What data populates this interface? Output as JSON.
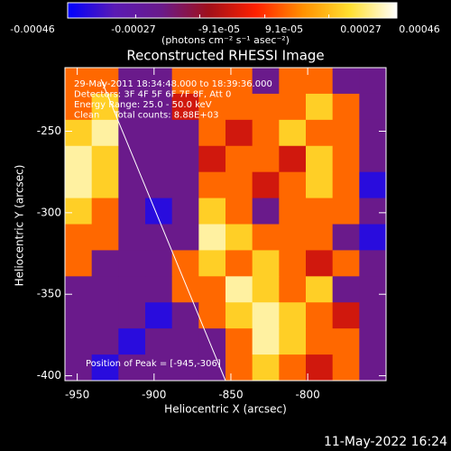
{
  "chart_data": {
    "type": "heatmap",
    "title": "Reconstructed RHESSI Image",
    "x_label": "Heliocentric X (arcsec)",
    "y_label": "Heliocentric Y (arcsec)",
    "xlim": [
      -958,
      -749
    ],
    "xticks": [
      -950,
      -900,
      -850,
      -800
    ],
    "ylim": [
      -403,
      -211
    ],
    "yticks": [
      -400,
      -350,
      -300,
      -250
    ],
    "colorbar": {
      "zlim": [
        -0.00046,
        0.00046
      ],
      "ticks": [
        -0.00046,
        -0.00027,
        {
          "value": -9.1e-05,
          "label": "-9.1e-05"
        },
        {
          "value": 9.1e-05,
          "label": "9.1e-05"
        },
        0.00027,
        0.00046
      ],
      "unit": "(photons cm⁻² s⁻¹ asec⁻²)",
      "colorscale": [
        "#0000ff",
        "#5a1ab4",
        "#6a1a8a",
        "#a0101a",
        "#ff2000",
        "#ff9000",
        "#ffe030",
        "#ffffff"
      ]
    },
    "annotations": [
      "29-May-2011 18:34:48.000 to 18:39:36.000",
      "Detectors: 3F 4F 5F 6F 7F 8F, Att 0",
      "Energy Range: 25.0 - 50.0 keV",
      "Clean     Total counts: 8.88E+03"
    ],
    "peak_label": "Position of Peak = [-945,-306]",
    "z": [
      [
        0.00015,
        0.00015,
        -0.0002,
        -0.0002,
        0.00015,
        0.00015,
        0.00015,
        -0.0002,
        0.00015,
        0.00015,
        -0.0002,
        -0.0002
      ],
      [
        0.00015,
        0.0003,
        -0.0002,
        -0.0002,
        0,
        0.00015,
        0.00015,
        0.00015,
        0.00015,
        0.0003,
        0.00015,
        -0.0002
      ],
      [
        0.0003,
        0.0004,
        -0.0002,
        -0.0002,
        -0.0002,
        0.00015,
        0,
        0.00015,
        0.0003,
        0.00015,
        0.00015,
        -0.0002
      ],
      [
        0.0004,
        0.0003,
        -0.0002,
        -0.0002,
        -0.0002,
        0,
        0.00015,
        0.00015,
        0,
        0.0003,
        0.00015,
        -0.0002
      ],
      [
        0.0004,
        0.0003,
        -0.0002,
        -0.0002,
        -0.0002,
        0.00015,
        0.00015,
        0,
        0.00015,
        0.0003,
        0.00015,
        -0.0004
      ],
      [
        0.0003,
        0.00015,
        -0.0002,
        -0.0004,
        -0.0002,
        0.0003,
        0.00015,
        -0.0002,
        0.00015,
        0.00015,
        0.00015,
        -0.0002
      ],
      [
        0.00015,
        0.00015,
        -0.0002,
        -0.0002,
        -0.0002,
        0.0004,
        0.0003,
        0.00015,
        0.00015,
        0.00015,
        -0.0002,
        -0.0004
      ],
      [
        0.00015,
        -0.0002,
        -0.0002,
        -0.0002,
        0.00015,
        0.0003,
        0.00015,
        0.0003,
        0.00015,
        0,
        0.00015,
        -0.0002
      ],
      [
        -0.0002,
        -0.0002,
        -0.0002,
        -0.0002,
        0.00015,
        0.00015,
        0.0004,
        0.0003,
        0.00015,
        0.0003,
        -0.0002,
        -0.0002
      ],
      [
        -0.0002,
        -0.0002,
        -0.0002,
        -0.0004,
        -0.0002,
        0.00015,
        0.0003,
        0.0004,
        0.0003,
        0.00015,
        0,
        -0.0002
      ],
      [
        -0.0002,
        -0.0002,
        -0.0004,
        -0.0002,
        -0.0002,
        -0.0002,
        0.00015,
        0.0004,
        0.0003,
        0.00015,
        0.00015,
        -0.0002
      ],
      [
        -0.0002,
        -0.0004,
        -0.0002,
        -0.0002,
        -0.0002,
        -0.0002,
        0.00015,
        0.0003,
        0.00015,
        0,
        0.00015,
        -0.0002
      ]
    ]
  },
  "footer": "11-May-2022 16:24"
}
